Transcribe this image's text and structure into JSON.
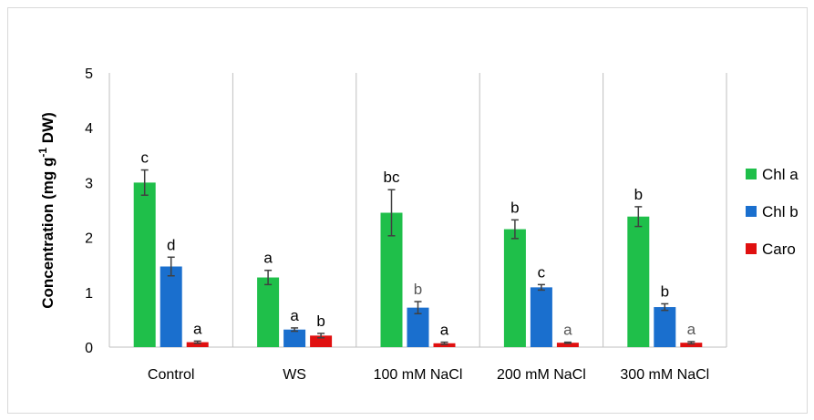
{
  "chart_data": {
    "type": "bar",
    "categories": [
      "Control",
      "WS",
      "100 mM NaCl",
      "200 mM NaCl",
      "300 mM NaCl"
    ],
    "ylabel": {
      "prefix": "Concentration (mg g",
      "sup": "-1",
      "suffix": " DW)"
    },
    "ylim": [
      0,
      5
    ],
    "yticks": [
      "0",
      "1",
      "2",
      "3",
      "4",
      "5"
    ],
    "grid": false,
    "legend_position": "right",
    "series": [
      {
        "name": "Chl a",
        "color": "#1fbf4a",
        "values": [
          3.0,
          1.27,
          2.45,
          2.15,
          2.38
        ],
        "errors": [
          0.23,
          0.13,
          0.42,
          0.17,
          0.18
        ],
        "labels": [
          "c",
          "a",
          "bc",
          "b",
          "b"
        ]
      },
      {
        "name": "Chl b",
        "color": "#1a6fce",
        "values": [
          1.47,
          0.32,
          0.72,
          1.09,
          0.73
        ],
        "errors": [
          0.17,
          0.03,
          0.11,
          0.05,
          0.06
        ],
        "labels": [
          "d",
          "a",
          "b",
          "c",
          "b"
        ]
      },
      {
        "name": "Caro",
        "color": "#e01010",
        "values": [
          0.09,
          0.21,
          0.07,
          0.08,
          0.08
        ],
        "errors": [
          0.02,
          0.04,
          0.02,
          0.01,
          0.02
        ],
        "labels": [
          "a",
          "b",
          "a",
          "a",
          "a"
        ]
      }
    ],
    "gray_labels": [
      [
        1,
        2
      ],
      [
        2,
        3
      ],
      [
        2,
        4
      ]
    ]
  }
}
